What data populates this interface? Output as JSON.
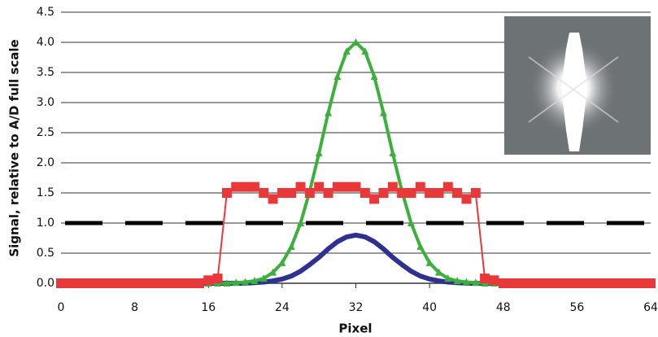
{
  "chart_data": {
    "type": "line",
    "x_label": "Pixel",
    "y_label": "Signal, relative to A/D full scale",
    "x": [
      0,
      1,
      2,
      3,
      4,
      5,
      6,
      7,
      8,
      9,
      10,
      11,
      12,
      13,
      14,
      15,
      16,
      17,
      18,
      19,
      20,
      21,
      22,
      23,
      24,
      25,
      26,
      27,
      28,
      29,
      30,
      31,
      32,
      33,
      34,
      35,
      36,
      37,
      38,
      39,
      40,
      41,
      42,
      43,
      44,
      45,
      46,
      47,
      48,
      49,
      50,
      51,
      52,
      53,
      54,
      55,
      56,
      57,
      58,
      59,
      60,
      61,
      62,
      63,
      64
    ],
    "series": [
      {
        "color": "#2e3192",
        "marker": "none",
        "values": [
          0,
          0,
          0,
          0,
          0,
          0,
          0,
          0,
          0,
          0,
          0,
          0,
          0,
          0,
          0,
          0,
          0,
          0,
          0,
          0,
          0,
          0.01,
          0.02,
          0.04,
          0.07,
          0.12,
          0.2,
          0.31,
          0.43,
          0.57,
          0.69,
          0.77,
          0.8,
          0.77,
          0.69,
          0.57,
          0.43,
          0.31,
          0.2,
          0.12,
          0.07,
          0.04,
          0.02,
          0.01,
          0,
          0,
          0,
          0,
          0,
          0,
          0,
          0,
          0,
          0,
          0,
          0,
          0,
          0,
          0,
          0,
          0,
          0,
          0,
          0,
          0
        ]
      },
      {
        "color": "#3cb03c",
        "marker": "triangle",
        "values": [
          0,
          0,
          0,
          0,
          0,
          0,
          0,
          0,
          0,
          0,
          0,
          0,
          0,
          0,
          0,
          0,
          0,
          0,
          0,
          0.01,
          0.02,
          0.04,
          0.08,
          0.18,
          0.34,
          0.61,
          1.0,
          1.53,
          2.16,
          2.83,
          3.43,
          3.85,
          4.0,
          3.85,
          3.43,
          2.83,
          2.16,
          1.53,
          1.0,
          0.61,
          0.34,
          0.18,
          0.08,
          0.04,
          0.02,
          0.01,
          0,
          0,
          0,
          0,
          0,
          0,
          0,
          0,
          0,
          0,
          0,
          0,
          0,
          0,
          0,
          0,
          0,
          0,
          0
        ]
      },
      {
        "color": "#e8383a",
        "marker": "square",
        "values": [
          0,
          0,
          0,
          0,
          0,
          0,
          0,
          0,
          0,
          0,
          0,
          0,
          0,
          0,
          0,
          0,
          0.05,
          0.08,
          1.5,
          1.6,
          1.6,
          1.6,
          1.5,
          1.4,
          1.5,
          1.5,
          1.6,
          1.5,
          1.6,
          1.5,
          1.6,
          1.6,
          1.6,
          1.5,
          1.4,
          1.5,
          1.6,
          1.5,
          1.5,
          1.6,
          1.5,
          1.5,
          1.6,
          1.5,
          1.4,
          1.5,
          0.08,
          0.05,
          0,
          0,
          0,
          0,
          0,
          0,
          0,
          0,
          0,
          0,
          0,
          0,
          0,
          0,
          0,
          0,
          0
        ]
      }
    ],
    "hline": 1,
    "hline_color": "#000000",
    "xlim": [
      0,
      64
    ],
    "xticks": [
      0,
      8,
      16,
      24,
      32,
      40,
      48,
      56,
      64
    ],
    "ylim": [
      0,
      4.5
    ],
    "yticks": [
      {
        "value": 0,
        "label": "0.0"
      },
      0.5,
      {
        "value": 1,
        "label": "1.0"
      },
      1.5,
      {
        "value": 2,
        "label": "2.0"
      },
      2.5,
      {
        "value": 3,
        "label": "3.0"
      },
      3.5,
      {
        "value": 4,
        "label": "4.0"
      },
      4.5
    ],
    "grid": true
  }
}
